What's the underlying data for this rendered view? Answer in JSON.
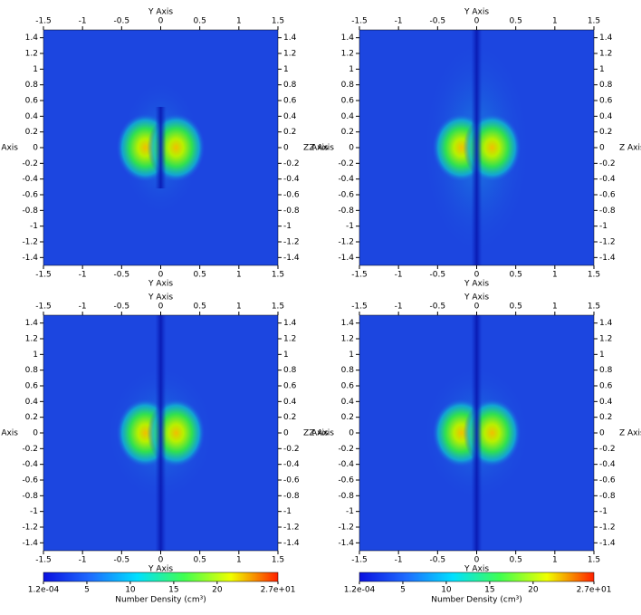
{
  "chart_data": [
    {
      "type": "heatmap",
      "xlabel": "Y Axis",
      "ylabel": "Z Axis",
      "xlim": [
        -1.5,
        1.5
      ],
      "ylim": [
        -1.5,
        1.5
      ],
      "xticks": [
        -1.5,
        -1,
        -0.5,
        0,
        0.5,
        1,
        1.5
      ],
      "yticks": [
        -1.4,
        -1.2,
        -1,
        -0.8,
        -0.6,
        -0.4,
        -0.2,
        0,
        0.2,
        0.4,
        0.6,
        0.8,
        1,
        1.2,
        1.4
      ]
    },
    {
      "type": "heatmap",
      "xlabel": "Y Axis",
      "ylabel": "Z Axis",
      "xlim": [
        -1.5,
        1.5
      ],
      "ylim": [
        -1.5,
        1.5
      ],
      "xticks": [
        -1.5,
        -1,
        -0.5,
        0,
        0.5,
        1,
        1.5
      ],
      "yticks": [
        -1.4,
        -1.2,
        -1,
        -0.8,
        -0.6,
        -0.4,
        -0.2,
        0,
        0.2,
        0.4,
        0.6,
        0.8,
        1,
        1.2,
        1.4
      ]
    },
    {
      "type": "heatmap",
      "xlabel": "Y Axis",
      "ylabel": "Z Axis",
      "xlim": [
        -1.5,
        1.5
      ],
      "ylim": [
        -1.5,
        1.5
      ],
      "xticks": [
        -1.5,
        -1,
        -0.5,
        0,
        0.5,
        1,
        1.5
      ],
      "yticks": [
        -1.4,
        -1.2,
        -1,
        -0.8,
        -0.6,
        -0.4,
        -0.2,
        0,
        0.2,
        0.4,
        0.6,
        0.8,
        1,
        1.2,
        1.4
      ],
      "colorbar": {
        "label": "Number Density (cm³)",
        "range": [
          0.00012,
          27
        ],
        "ticks": [
          {
            "value": 0.00012,
            "label": "1.2e-04"
          },
          5,
          10,
          15,
          20,
          {
            "value": 27,
            "label": "2.7e+01"
          }
        ],
        "colors": [
          "#0a10e0",
          "#1e6cff",
          "#00e0ff",
          "#40ff50",
          "#f0ff00",
          "#ff2000"
        ]
      }
    },
    {
      "type": "heatmap",
      "xlabel": "Y Axis",
      "ylabel": "Z Axis",
      "xlim": [
        -1.5,
        1.5
      ],
      "ylim": [
        -1.5,
        1.5
      ],
      "xticks": [
        -1.5,
        -1,
        -0.5,
        0,
        0.5,
        1,
        1.5
      ],
      "yticks": [
        -1.4,
        -1.2,
        -1,
        -0.8,
        -0.6,
        -0.4,
        -0.2,
        0,
        0.2,
        0.4,
        0.6,
        0.8,
        1,
        1.2,
        1.4
      ],
      "colorbar": {
        "label": "Number Density (cm³)",
        "range": [
          0.00012,
          27
        ],
        "ticks": [
          {
            "value": 0.00012,
            "label": "1.2e-04"
          },
          5,
          10,
          15,
          20,
          {
            "value": 27,
            "label": "2.7e+01"
          }
        ],
        "colors": [
          "#0a10e0",
          "#1e6cff",
          "#00e0ff",
          "#40ff50",
          "#f0ff00",
          "#ff2000"
        ]
      }
    }
  ]
}
